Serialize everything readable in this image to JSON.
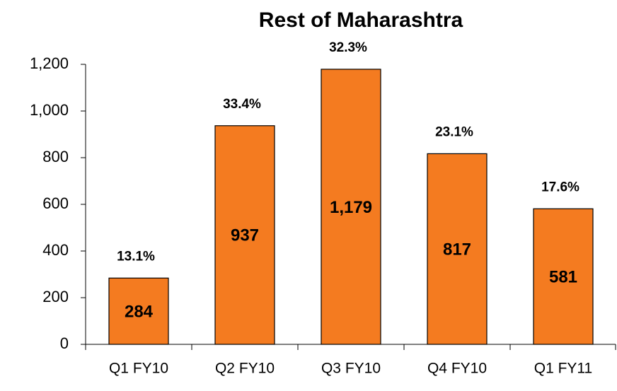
{
  "chart_data": {
    "type": "bar",
    "title": "Rest of Maharashtra",
    "categories": [
      "Q1 FY10",
      "Q2 FY10",
      "Q3 FY10",
      "Q4 FY10",
      "Q1 FY11"
    ],
    "values": [
      284,
      937,
      1179,
      817,
      581
    ],
    "value_labels": [
      "284",
      "937",
      "1,179",
      "817",
      "581"
    ],
    "annotations": [
      "13.1%",
      "33.4%",
      "32.3%",
      "23.1%",
      "17.6%"
    ],
    "color": "#f47b20",
    "ylim": [
      0,
      1200
    ],
    "yticks": [
      0,
      200,
      400,
      600,
      800,
      {
        "value": 1000,
        "label": "1,000"
      },
      {
        "value": 1200,
        "label": "1,200"
      }
    ],
    "grid": false
  }
}
